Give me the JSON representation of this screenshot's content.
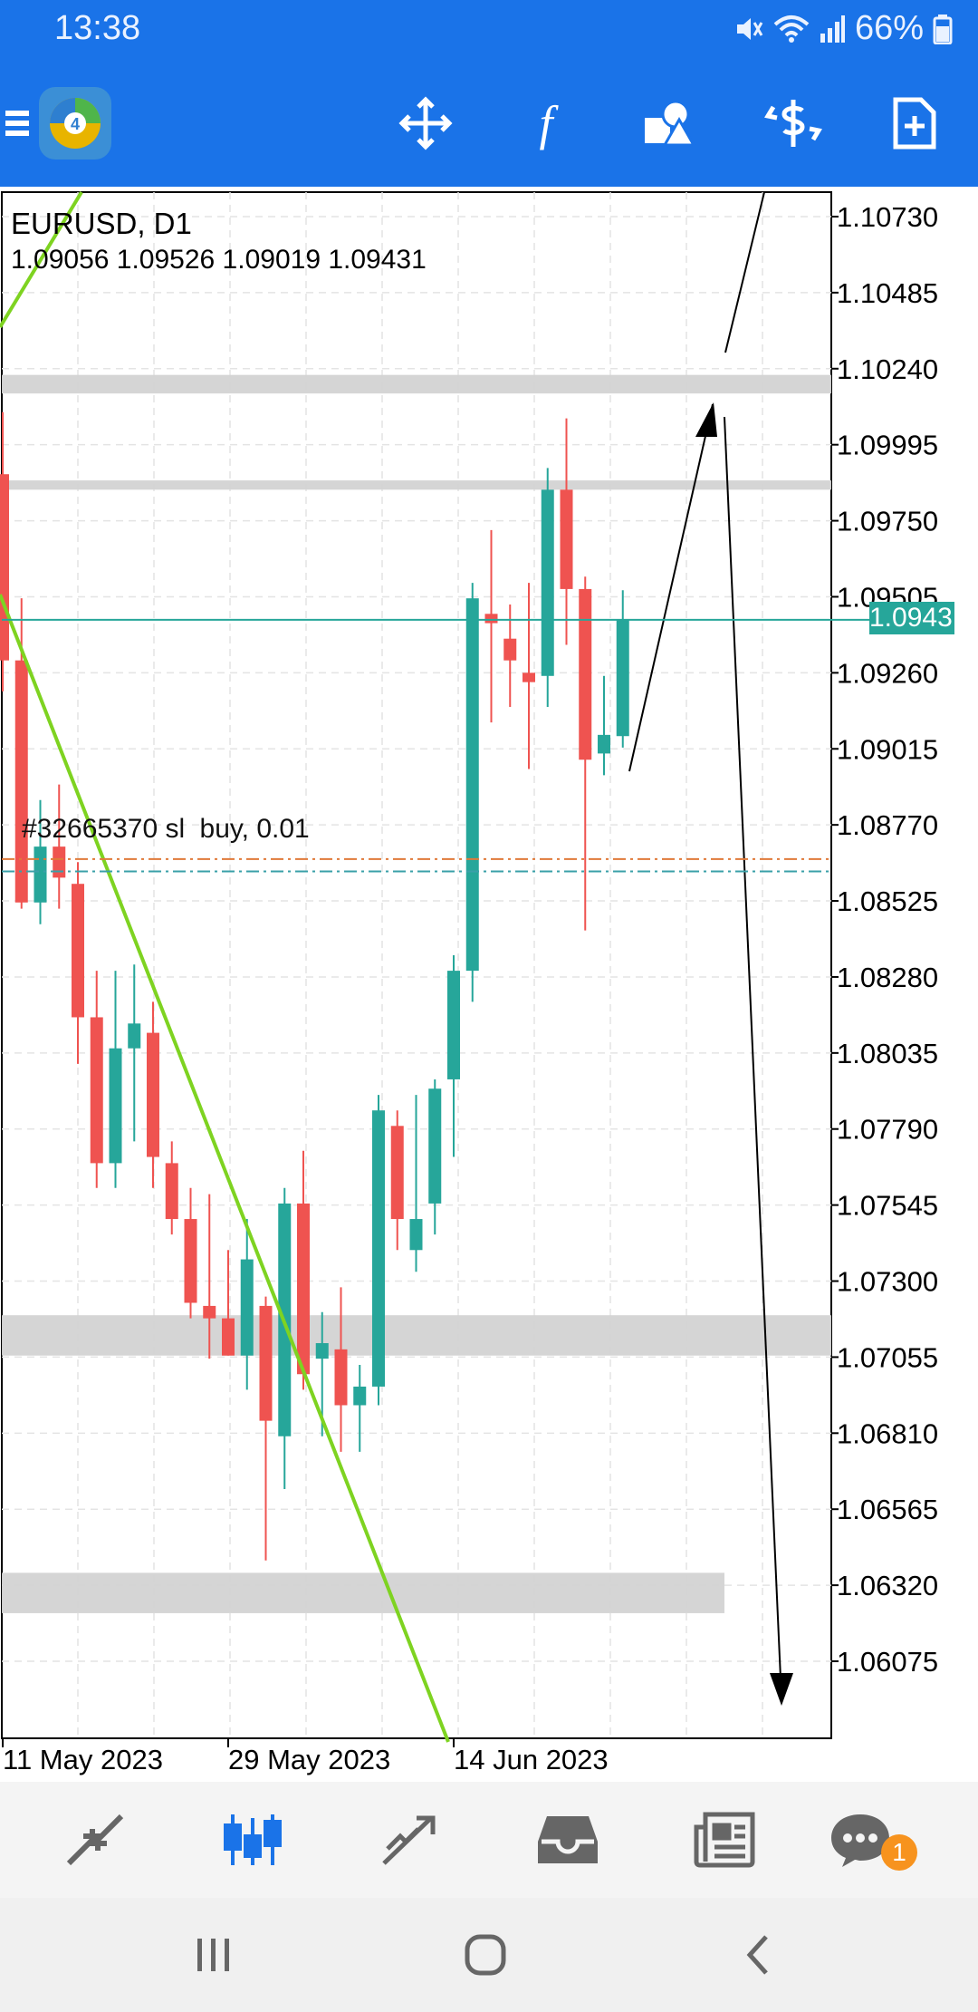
{
  "status": {
    "time": "13:38",
    "battery": "66%"
  },
  "toolbar": {
    "menu_icon": "hamburger-icon",
    "logo_icon": "metatrader-logo",
    "buttons": [
      "crosshair-move-icon",
      "function-indicator-icon",
      "objects-shapes-icon",
      "dollar-trade-icon",
      "new-document-icon"
    ]
  },
  "chart": {
    "symbol": "EURUSD, D1",
    "ohlc": "1.09056 1.09526 1.09019 1.09431",
    "current_price": "1.09431",
    "order_label": "#32665370 sl",
    "order_label_2": "buy, 0.01",
    "colors": {
      "bull": "#26a69a",
      "bear": "#ef5350",
      "trend": "#7ed321",
      "zone": "#d3d3d3"
    }
  },
  "chart_data": {
    "type": "candlestick",
    "symbol": "EURUSD",
    "timeframe": "D1",
    "y_ticks": [
      "1.10730",
      "1.10485",
      "1.10240",
      "1.09995",
      "1.09750",
      "1.09505",
      "1.09260",
      "1.09015",
      "1.08770",
      "1.08525",
      "1.08280",
      "1.08035",
      "1.07790",
      "1.07545",
      "1.07300",
      "1.07055",
      "1.06810",
      "1.06565",
      "1.06320",
      "1.06075"
    ],
    "ylim": [
      1.0585,
      1.109
    ],
    "x_labels": [
      {
        "text": "11 May 2023",
        "index": 0
      },
      {
        "text": "29 May 2023",
        "index": 12
      },
      {
        "text": "14 Jun 2023",
        "index": 24
      }
    ],
    "candles": [
      {
        "o": 1.099,
        "h": 1.101,
        "l": 1.092,
        "c": 1.093
      },
      {
        "o": 1.093,
        "h": 1.095,
        "l": 1.085,
        "c": 1.0852
      },
      {
        "o": 1.0852,
        "h": 1.0885,
        "l": 1.0845,
        "c": 1.087
      },
      {
        "o": 1.087,
        "h": 1.089,
        "l": 1.085,
        "c": 1.086
      },
      {
        "o": 1.0858,
        "h": 1.0865,
        "l": 1.08,
        "c": 1.0815
      },
      {
        "o": 1.0815,
        "h": 1.083,
        "l": 1.076,
        "c": 1.0768
      },
      {
        "o": 1.0768,
        "h": 1.083,
        "l": 1.076,
        "c": 1.0805
      },
      {
        "o": 1.0805,
        "h": 1.0832,
        "l": 1.0775,
        "c": 1.0813
      },
      {
        "o": 1.081,
        "h": 1.082,
        "l": 1.076,
        "c": 1.077
      },
      {
        "o": 1.0768,
        "h": 1.0775,
        "l": 1.0745,
        "c": 1.075
      },
      {
        "o": 1.075,
        "h": 1.076,
        "l": 1.0718,
        "c": 1.0723
      },
      {
        "o": 1.0722,
        "h": 1.0758,
        "l": 1.0705,
        "c": 1.0718
      },
      {
        "o": 1.0718,
        "h": 1.074,
        "l": 1.0706,
        "c": 1.0706
      },
      {
        "o": 1.0706,
        "h": 1.075,
        "l": 1.0695,
        "c": 1.0737
      },
      {
        "o": 1.0722,
        "h": 1.0725,
        "l": 1.064,
        "c": 1.0685
      },
      {
        "o": 1.068,
        "h": 1.076,
        "l": 1.0663,
        "c": 1.0755
      },
      {
        "o": 1.0755,
        "h": 1.0772,
        "l": 1.0695,
        "c": 1.07
      },
      {
        "o": 1.0705,
        "h": 1.072,
        "l": 1.068,
        "c": 1.071
      },
      {
        "o": 1.0708,
        "h": 1.0728,
        "l": 1.0675,
        "c": 1.069
      },
      {
        "o": 1.069,
        "h": 1.0703,
        "l": 1.0675,
        "c": 1.0696
      },
      {
        "o": 1.0696,
        "h": 1.079,
        "l": 1.069,
        "c": 1.0785
      },
      {
        "o": 1.078,
        "h": 1.0785,
        "l": 1.074,
        "c": 1.075
      },
      {
        "o": 1.074,
        "h": 1.079,
        "l": 1.0733,
        "c": 1.075
      },
      {
        "o": 1.0755,
        "h": 1.0795,
        "l": 1.0745,
        "c": 1.0792
      },
      {
        "o": 1.0795,
        "h": 1.0835,
        "l": 1.077,
        "c": 1.083
      },
      {
        "o": 1.083,
        "h": 1.0955,
        "l": 1.082,
        "c": 1.095
      },
      {
        "o": 1.0945,
        "h": 1.0972,
        "l": 1.091,
        "c": 1.0942
      },
      {
        "o": 1.0937,
        "h": 1.0948,
        "l": 1.0915,
        "c": 1.093
      },
      {
        "o": 1.0926,
        "h": 1.0955,
        "l": 1.0895,
        "c": 1.0923
      },
      {
        "o": 1.0925,
        "h": 1.0992,
        "l": 1.0915,
        "c": 1.0985
      },
      {
        "o": 1.0985,
        "h": 1.1008,
        "l": 1.0935,
        "c": 1.0953
      },
      {
        "o": 1.0953,
        "h": 1.0957,
        "l": 1.0843,
        "c": 1.0898
      },
      {
        "o": 1.09,
        "h": 1.0925,
        "l": 1.0893,
        "c": 1.0906
      },
      {
        "o": 1.09056,
        "h": 1.09526,
        "l": 1.09019,
        "c": 1.09431
      }
    ],
    "zones": [
      {
        "top": 1.1022,
        "bottom": 1.1016,
        "end": "full"
      },
      {
        "top": 1.0988,
        "bottom": 1.0985,
        "end": "full"
      },
      {
        "top": 1.0719,
        "bottom": 1.0706,
        "end": "full"
      },
      {
        "top": 1.0636,
        "bottom": 1.0623,
        "end": "partial"
      }
    ],
    "current_line": 1.09431,
    "order_lines": [
      1.0866,
      1.0862
    ]
  },
  "bottom_nav": {
    "items": [
      "quotes-icon",
      "chart-icon",
      "trade-icon",
      "history-icon",
      "news-icon",
      "messages-icon"
    ],
    "messages_badge": "1"
  },
  "system_nav": {
    "items": [
      "recent-apps-icon",
      "home-icon",
      "back-icon"
    ]
  }
}
